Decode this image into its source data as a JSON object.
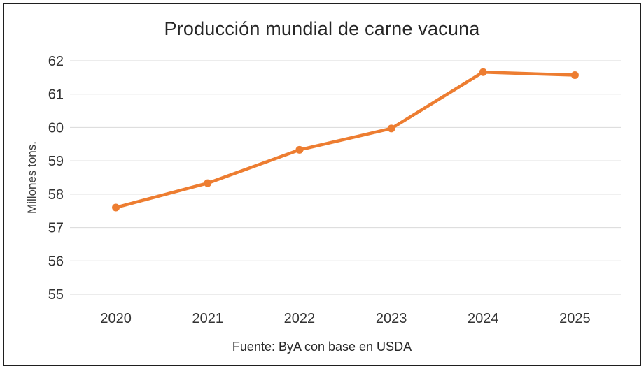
{
  "frame": {
    "border_color": "#1f1f1f",
    "background_color": "#ffffff"
  },
  "chart_data": {
    "type": "line",
    "title": "Producción mundial de carne vacuna",
    "ylabel": "Millones tons.",
    "xlabel": "",
    "source": "Fuente: ByA con base en USDA",
    "categories": [
      "2020",
      "2021",
      "2022",
      "2023",
      "2024",
      "2025"
    ],
    "series": [
      {
        "name": "Producción mundial de carne vacuna",
        "values": [
          57.6,
          58.33,
          59.33,
          59.97,
          61.66,
          61.57
        ]
      }
    ],
    "ylim": [
      55,
      62
    ],
    "yticks": [
      55,
      56,
      57,
      58,
      59,
      60,
      61,
      62
    ],
    "grid": "horizontal",
    "legend_position": "none",
    "line_color": "#ED7D31",
    "marker": "circle",
    "gridline_color": "#D9D9D9",
    "tick_label_color": "#333333",
    "title_color": "#262626"
  }
}
